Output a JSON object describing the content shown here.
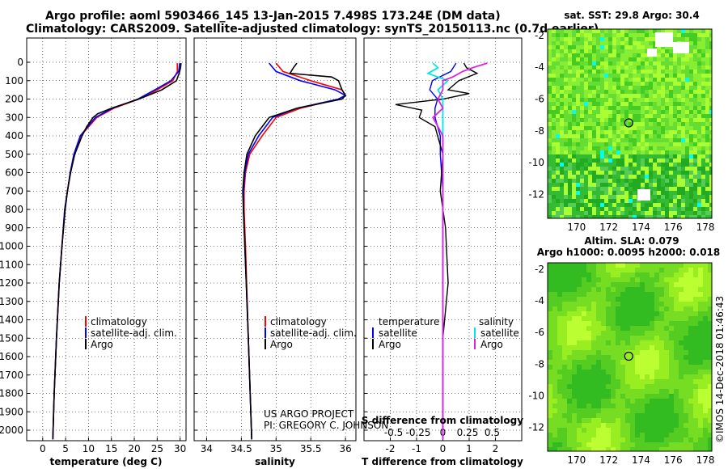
{
  "header": {
    "line1": "Argo profile: aoml 5903466_145 13-Jan-2015 7.498S 173.24E (DM data)",
    "line2": "Climatology: CARS2009. Satellite-adjusted climatology: synTS_20150113.nc (0.7d earlier)"
  },
  "colors": {
    "climatology": "#ff0000",
    "satellite": "#0000ff",
    "argo": "#000000",
    "sal_satellite": "#00e5e5",
    "sal_argo": "#e020e0",
    "map_green": "#44cc33"
  },
  "credit": {
    "line1": "US ARGO PROJECT",
    "line2": "PI: GREGORY C. JOHNSON"
  },
  "footer": {
    "imos": "©IMOS 14-Dec-2018 01:46:43"
  },
  "chart_data": [
    {
      "type": "line",
      "name": "temperature-profile",
      "xlabel": "temperature (deg C)",
      "ylabel": "",
      "xlim": [
        -2,
        31
      ],
      "ylim": [
        2080,
        0
      ],
      "x_ticks": [
        "0",
        "5",
        "10",
        "15",
        "20",
        "25",
        "30"
      ],
      "y_ticks": [
        "0",
        "100",
        "200",
        "300",
        "400",
        "500",
        "600",
        "700",
        "800",
        "900",
        "1000",
        "1100",
        "1200",
        "1300",
        "1400",
        "1500",
        "1600",
        "1700",
        "1800",
        "1900",
        "2000"
      ],
      "legend": [
        "climatology",
        "satellite-adj. clim.",
        "Argo"
      ],
      "series": [
        {
          "name": "climatology",
          "depth": [
            5,
            50,
            100,
            150,
            200,
            250,
            300,
            400,
            500,
            600,
            700,
            800,
            1000,
            1200,
            1500,
            1800,
            2050
          ],
          "values": [
            29.4,
            29.4,
            28.4,
            25.0,
            21.0,
            15.5,
            11.8,
            8.3,
            6.9,
            6.0,
            5.4,
            4.8,
            4.2,
            3.6,
            3.0,
            2.5,
            2.2
          ]
        },
        {
          "name": "satellite-adj. clim.",
          "depth": [
            5,
            50,
            100,
            150,
            200,
            250,
            300,
            400,
            500,
            600,
            700,
            800,
            1000,
            1200,
            1500,
            1800,
            2050
          ],
          "values": [
            29.9,
            29.7,
            28.0,
            24.5,
            20.8,
            15.2,
            11.5,
            8.2,
            6.8,
            6.0,
            5.4,
            4.8,
            4.2,
            3.6,
            3.0,
            2.5,
            2.2
          ]
        },
        {
          "name": "Argo",
          "depth": [
            5,
            30,
            60,
            100,
            150,
            200,
            250,
            280,
            300,
            350,
            400,
            500,
            600,
            700,
            800,
            1000,
            1200,
            1500,
            1800,
            2050
          ],
          "values": [
            30.2,
            30.1,
            29.8,
            29.2,
            26.0,
            21.0,
            15.0,
            12.0,
            11.0,
            9.6,
            8.6,
            7.0,
            6.1,
            5.4,
            4.9,
            4.2,
            3.6,
            3.0,
            2.5,
            2.2
          ]
        }
      ]
    },
    {
      "type": "line",
      "name": "salinity-profile",
      "xlabel": "salinity",
      "xlim": [
        33.8,
        36.1
      ],
      "ylim": [
        2080,
        0
      ],
      "x_ticks": [
        "34",
        "34.5",
        "35",
        "35.5",
        "36"
      ],
      "legend": [
        "climatology",
        "satellite-adj. clim.",
        "Argo"
      ],
      "series": [
        {
          "name": "climatology",
          "depth": [
            5,
            50,
            100,
            150,
            180,
            200,
            250,
            300,
            400,
            500,
            600,
            700,
            800,
            1000,
            1500,
            2050
          ],
          "values": [
            35.0,
            35.1,
            35.5,
            35.95,
            36.0,
            35.9,
            35.35,
            35.0,
            34.8,
            34.62,
            34.56,
            34.54,
            34.54,
            34.56,
            34.6,
            34.65
          ]
        },
        {
          "name": "satellite-adj. clim.",
          "depth": [
            5,
            50,
            100,
            150,
            180,
            200,
            250,
            300,
            400,
            500,
            600,
            700,
            800,
            1000,
            1500,
            2050
          ],
          "values": [
            34.9,
            35.0,
            35.35,
            35.85,
            36.0,
            35.9,
            35.3,
            34.95,
            34.75,
            34.6,
            34.55,
            34.53,
            34.53,
            34.55,
            34.6,
            34.65
          ]
        },
        {
          "name": "Argo",
          "depth": [
            5,
            30,
            60,
            80,
            100,
            150,
            180,
            200,
            250,
            300,
            400,
            500,
            600,
            700,
            800,
            1000,
            1500,
            2050
          ],
          "values": [
            35.3,
            35.25,
            35.2,
            35.8,
            35.9,
            35.95,
            36.0,
            35.95,
            35.3,
            34.9,
            34.7,
            34.58,
            34.54,
            34.52,
            34.53,
            34.55,
            34.6,
            34.65
          ]
        }
      ]
    },
    {
      "type": "line",
      "name": "difference-profile",
      "xlabel": "T difference from climatology",
      "xlabel_top": "S difference from climatology",
      "xlim": [
        -3,
        3
      ],
      "ylim": [
        2080,
        0
      ],
      "x_ticks": [
        "-2",
        "-1",
        "0",
        "1",
        "2"
      ],
      "s_ticks": [
        "-0.5",
        "-0.25",
        "0",
        "0.25",
        "0.5"
      ],
      "legend_temperature_title": "temperature",
      "legend_salinity_title": "salinity",
      "legend_temperature": [
        "satellite",
        "Argo"
      ],
      "legend_salinity": [
        "satellite",
        "Argo"
      ],
      "series": [
        {
          "name": "T satellite",
          "depth": [
            5,
            50,
            100,
            150,
            200,
            250,
            300,
            400,
            500,
            700,
            1000,
            1500,
            2050
          ],
          "values": [
            0.5,
            0.3,
            -0.4,
            -0.5,
            -0.2,
            -0.3,
            -0.3,
            -0.1,
            -0.1,
            0,
            0,
            0,
            0
          ]
        },
        {
          "name": "T Argo",
          "depth": [
            5,
            30,
            60,
            100,
            150,
            170,
            200,
            230,
            260,
            300,
            350,
            400,
            500,
            700,
            900,
            1200,
            1500,
            2050
          ],
          "values": [
            0.8,
            0.9,
            1.3,
            0.6,
            0.2,
            1.0,
            0.0,
            -1.8,
            -0.8,
            -0.9,
            -0.3,
            -0.2,
            0,
            -0.1,
            0.1,
            0.2,
            0,
            0
          ]
        },
        {
          "name": "S satellite",
          "depth": [
            5,
            30,
            60,
            100,
            150,
            200,
            300,
            500,
            700,
            1000,
            1500,
            2050
          ],
          "values": [
            -0.1,
            -0.05,
            -0.15,
            0.05,
            -0.05,
            0,
            0.0,
            0,
            0,
            0,
            0,
            0
          ]
        },
        {
          "name": "S Argo",
          "depth": [
            5,
            30,
            50,
            80,
            100,
            150,
            200,
            250,
            300,
            400,
            500,
            700,
            1000,
            1500,
            2050
          ],
          "values": [
            0.45,
            0.3,
            0.2,
            0.1,
            0.0,
            0.0,
            -0.05,
            0.0,
            -0.1,
            0,
            0,
            0,
            0,
            0,
            0
          ]
        }
      ]
    },
    {
      "type": "heatmap",
      "name": "sst-map",
      "title": "sat. SST: 29.8  Argo: 30.4",
      "x_ticks": [
        "170",
        "172",
        "174",
        "176",
        "178"
      ],
      "y_ticks": [
        "-2",
        "-4",
        "-6",
        "-8",
        "-10",
        "-12"
      ],
      "xlim": [
        168.2,
        178.4
      ],
      "ylim": [
        -13.5,
        -1.6
      ],
      "marker": [
        173.24,
        -7.498
      ]
    },
    {
      "type": "heatmap",
      "name": "sla-map",
      "title1": "Altim. SLA: 0.079",
      "title2": "Argo h1000: 0.0095 h2000: 0.018",
      "x_ticks": [
        "170",
        "172",
        "174",
        "176",
        "178"
      ],
      "y_ticks": [
        "-2",
        "-4",
        "-6",
        "-8",
        "-10",
        "-12"
      ],
      "xlim": [
        168.2,
        178.4
      ],
      "ylim": [
        -13.5,
        -1.6
      ],
      "marker": [
        173.24,
        -7.498
      ]
    }
  ]
}
